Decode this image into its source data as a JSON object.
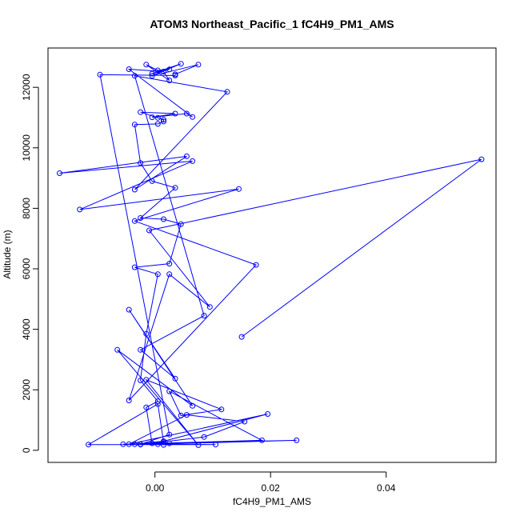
{
  "chart_data": {
    "type": "line",
    "title": "ATOM3 Northeast_Pacific_1 fC4H9_PM1_AMS",
    "xlabel": "fC4H9_PM1_AMS",
    "ylabel": "Altitude (m)",
    "xlim": [
      -0.0185,
      0.059
    ],
    "ylim": [
      -400,
      13300
    ],
    "xticks": [
      0.0,
      0.02,
      0.04
    ],
    "xtick_labels": [
      "0.00",
      "0.02",
      "0.04"
    ],
    "yticks": [
      0,
      2000,
      4000,
      6000,
      8000,
      10000,
      12000
    ],
    "ytick_labels": [
      "0",
      "2000",
      "4000",
      "6000",
      "8000",
      "10000",
      "12000"
    ],
    "grid": false,
    "color": "#0000ff",
    "marker": "open-circle",
    "series": [
      {
        "x": [
          0.015,
          0.0565,
          -0.001,
          0.0095,
          0.0025,
          -0.0045,
          0.0175,
          -0.0035,
          0.0145,
          -0.013,
          0.0065,
          -0.0165,
          0.0055,
          -0.0035,
          0.0125,
          -0.0035,
          0.0085,
          -0.0025,
          0.0035,
          -0.0045,
          0.0065,
          -0.0065,
          0.0075,
          -0.0015,
          0.0115,
          0.0045,
          0.0025,
          0.0185,
          -0.0055,
          0.0245,
          -0.0025,
          0.0085,
          0.0155,
          0.0055,
          -0.0045,
          0.0195,
          0.0015,
          -0.0035,
          0.0015,
          0.0005,
          -0.0115,
          0.0105,
          -0.0025,
          0.0025,
          -0.0095,
          0.0035,
          0.0035,
          0.0075,
          -0.0005,
          0.0045,
          -0.0005,
          0.0025,
          0.0005,
          -0.0015,
          0.0025,
          0.0015,
          -0.0045,
          0.0065,
          0.0055,
          -0.0005,
          0.0035,
          -0.0025,
          0.0005,
          0.0015,
          0.0015,
          0.0005,
          -0.0035,
          -0.0025,
          -0.0005,
          0.0035,
          -0.0025,
          0.0015,
          0.0045,
          0.0025,
          -0.0035,
          0.0005,
          -0.0015,
          -0.0025,
          0.0005,
          -0.0015,
          -0.0005,
          0.0005,
          0.0025,
          0.0015
        ],
        "y": [
          3750,
          9620,
          7270,
          4740,
          5820,
          1650,
          6130,
          7580,
          8640,
          7960,
          9560,
          9160,
          9720,
          8620,
          11850,
          12380,
          4450,
          3320,
          2370,
          4650,
          1470,
          3320,
          170,
          2330,
          1350,
          1150,
          1950,
          330,
          200,
          330,
          190,
          440,
          950,
          1170,
          200,
          1200,
          300,
          200,
          270,
          1530,
          190,
          190,
          200,
          520,
          12420,
          12390,
          12430,
          12750,
          12380,
          12780,
          12450,
          12590,
          12560,
          12750,
          12230,
          12520,
          12600,
          11020,
          11130,
          11010,
          11130,
          11180,
          10990,
          10930,
          10870,
          10790,
          10770,
          9500,
          8900,
          8680,
          7680,
          7640,
          7480,
          6170,
          6050,
          5820,
          3850,
          2310,
          1620,
          1420,
          230,
          200,
          230,
          180
        ]
      }
    ]
  }
}
